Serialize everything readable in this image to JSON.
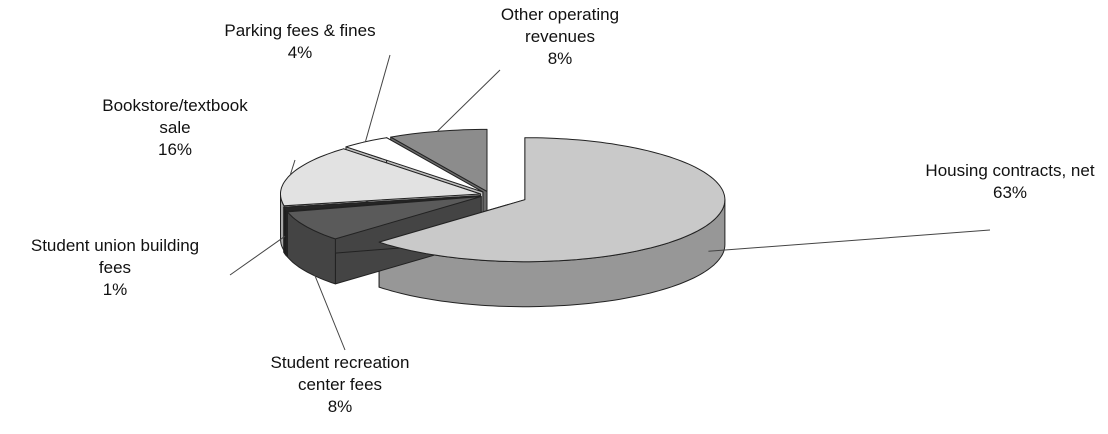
{
  "chart_data": {
    "type": "pie",
    "categories": [
      "Housing contracts, net",
      "Student recreation center fees",
      "Student union building fees",
      "Bookstore/textbook sale",
      "Parking fees & fines",
      "Other operating revenues"
    ],
    "values": [
      63,
      8,
      1,
      16,
      4,
      8
    ],
    "value_labels": [
      "63%",
      "8%",
      "1%",
      "16%",
      "4%",
      "8%"
    ],
    "colors": [
      "#c9c9c9",
      "#5a5a5a",
      "#262626",
      "#e2e2e2",
      "#ffffff",
      "#8c8c8c"
    ]
  }
}
